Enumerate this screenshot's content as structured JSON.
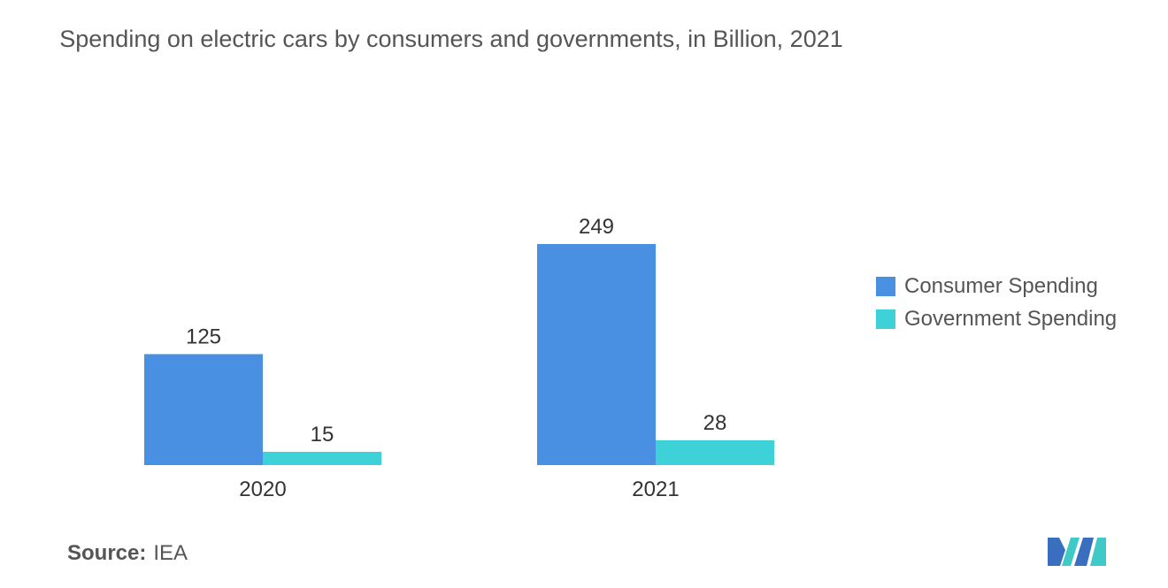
{
  "chart_data": {
    "type": "bar",
    "title": "Spending on electric cars by consumers and governments, in Billion, 2021",
    "categories": [
      "2020",
      "2021"
    ],
    "series": [
      {
        "name": "Consumer Spending",
        "values": [
          125,
          249
        ],
        "color": "#4a90e2"
      },
      {
        "name": "Government Spending",
        "values": [
          15,
          28
        ],
        "color": "#3fd1d8"
      }
    ],
    "ylim": [
      0,
      250
    ],
    "grid": false,
    "legend_position": "right",
    "data_labels": true
  },
  "source": {
    "label": "Source:",
    "value": "IEA"
  },
  "logo": {
    "icon": "mordor-intelligence-logo-icon",
    "colors": [
      "#3a6fbf",
      "#3fc9c7"
    ]
  }
}
